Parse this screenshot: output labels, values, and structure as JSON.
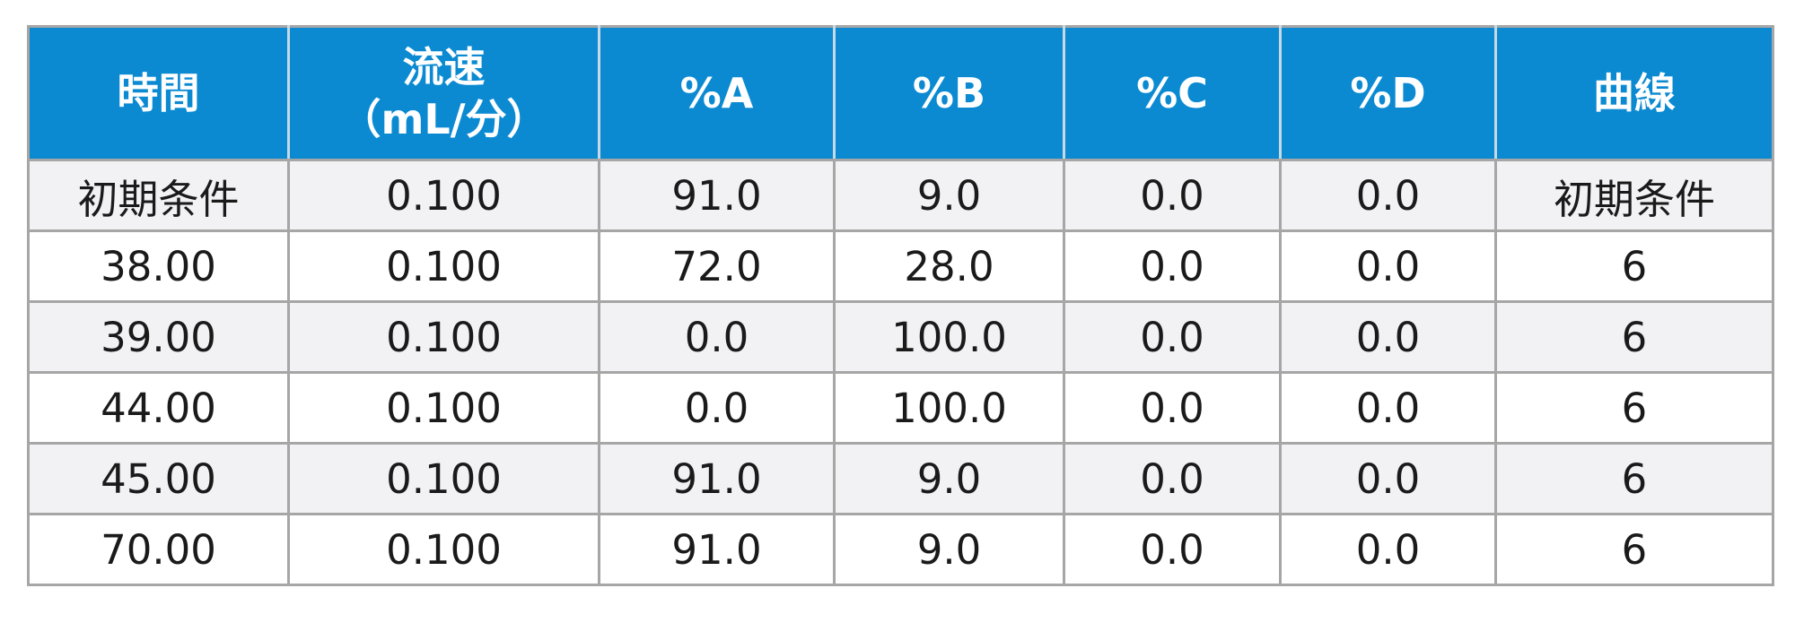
{
  "table": {
    "header": {
      "time": "時間",
      "flow_line1": "流速",
      "flow_line2": "（mL/分）",
      "a": "%A",
      "b": "%B",
      "c": "%C",
      "d": "%D",
      "curve": "曲線"
    },
    "rows": [
      [
        "初期条件",
        "0.100",
        "91.0",
        "9.0",
        "0.0",
        "0.0",
        "初期条件"
      ],
      [
        "38.00",
        "0.100",
        "72.0",
        "28.0",
        "0.0",
        "0.0",
        "6"
      ],
      [
        "39.00",
        "0.100",
        "0.0",
        "100.0",
        "0.0",
        "0.0",
        "6"
      ],
      [
        "44.00",
        "0.100",
        "0.0",
        "100.0",
        "0.0",
        "0.0",
        "6"
      ],
      [
        "45.00",
        "0.100",
        "91.0",
        "9.0",
        "0.0",
        "0.0",
        "6"
      ],
      [
        "70.00",
        "0.100",
        "91.0",
        "9.0",
        "0.0",
        "0.0",
        "6"
      ]
    ],
    "colors": {
      "header_bg": "#0b8ad2",
      "header_text": "#ffffff",
      "stripe_bg": "#f2f2f4",
      "row_bg": "#ffffff",
      "border": "#a6a6a6"
    }
  }
}
